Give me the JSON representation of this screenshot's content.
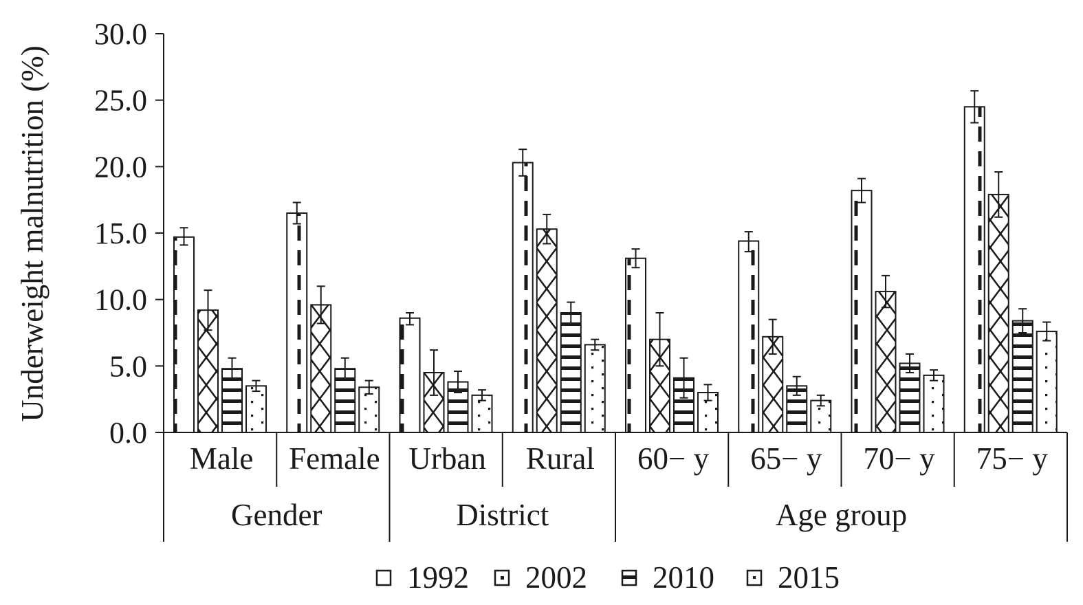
{
  "chart_data": {
    "type": "bar",
    "ylabel": "Underweight malnutrition (%)",
    "ylim": [
      0,
      30
    ],
    "yticks": [
      "0.0",
      "5.0",
      "10.0",
      "15.0",
      "20.0",
      "25.0",
      "30.0"
    ],
    "legend_position": "bottom",
    "grid": false,
    "categories": [
      "Male",
      "Female",
      "Urban",
      "Rural",
      "60− y",
      "65− y",
      "70− y",
      "75− y"
    ],
    "groups": [
      {
        "label": "Gender",
        "categories": [
          "Male",
          "Female"
        ]
      },
      {
        "label": "District",
        "categories": [
          "Urban",
          "Rural"
        ]
      },
      {
        "label": "Age group",
        "categories": [
          "60− y",
          "65− y",
          "70− y",
          "75− y"
        ]
      }
    ],
    "series": [
      {
        "name": "1992",
        "pattern": "dashed-line",
        "values": [
          14.7,
          16.5,
          8.6,
          20.3,
          13.1,
          14.4,
          18.2,
          24.5
        ],
        "err_high": [
          15.4,
          17.3,
          9.0,
          21.3,
          13.8,
          15.1,
          19.1,
          25.7
        ],
        "err_low": [
          14.1,
          15.7,
          8.1,
          19.3,
          12.4,
          13.6,
          17.3,
          23.3
        ]
      },
      {
        "name": "2002",
        "pattern": "cross-hatch",
        "values": [
          9.2,
          9.6,
          4.5,
          15.3,
          7.0,
          7.2,
          10.6,
          17.9
        ],
        "err_high": [
          10.7,
          11.0,
          6.2,
          16.4,
          9.0,
          8.5,
          11.8,
          19.6
        ],
        "err_low": [
          7.7,
          8.2,
          2.8,
          14.2,
          5.0,
          5.9,
          9.4,
          16.2
        ]
      },
      {
        "name": "2010",
        "pattern": "horizontal-stripes",
        "values": [
          4.8,
          4.8,
          3.8,
          9.0,
          4.1,
          3.5,
          5.2,
          8.4
        ],
        "err_high": [
          5.6,
          5.6,
          4.6,
          9.8,
          5.6,
          4.2,
          5.9,
          9.3
        ],
        "err_low": [
          4.0,
          4.0,
          3.0,
          8.2,
          2.6,
          2.8,
          4.5,
          7.5
        ]
      },
      {
        "name": "2015",
        "pattern": "dots",
        "values": [
          3.5,
          3.4,
          2.8,
          6.6,
          3.0,
          2.4,
          4.3,
          7.6
        ],
        "err_high": [
          3.9,
          3.9,
          3.2,
          7.0,
          3.6,
          2.8,
          4.7,
          8.3
        ],
        "err_low": [
          3.1,
          2.9,
          2.4,
          6.2,
          2.4,
          2.0,
          3.9,
          6.9
        ]
      }
    ]
  }
}
